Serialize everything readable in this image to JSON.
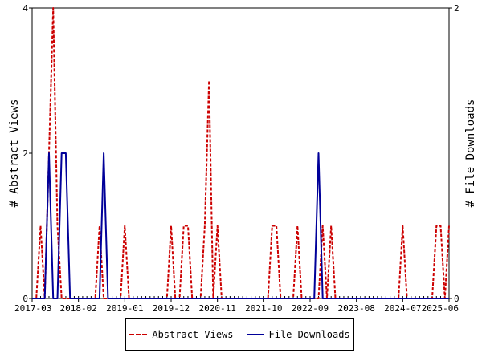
{
  "chart_data": {
    "type": "line",
    "x_tick_labels": [
      "2017-03",
      "2018-02",
      "2019-01",
      "2019-12",
      "2020-11",
      "2021-10",
      "2022-09",
      "2023-08",
      "2024-07",
      "2025-06"
    ],
    "x_range": [
      "2017-03",
      "2025-06"
    ],
    "y_left": {
      "label": "# Abstract Views",
      "range": [
        0,
        4
      ],
      "ticks": [
        "0",
        "2",
        "4"
      ]
    },
    "y_right": {
      "label": "# File Downloads",
      "range": [
        0,
        2
      ],
      "ticks": [
        "0",
        "2"
      ]
    },
    "series": [
      {
        "name": "Abstract Views",
        "axis": "left",
        "color": "#cc0000",
        "style": "dashed",
        "points": [
          [
            "2017-03",
            0
          ],
          [
            "2017-04",
            0
          ],
          [
            "2017-05",
            1
          ],
          [
            "2017-06",
            0
          ],
          [
            "2017-07",
            2
          ],
          [
            "2017-08",
            4
          ],
          [
            "2017-09",
            1
          ],
          [
            "2017-10",
            0
          ],
          [
            "2017-11",
            0
          ],
          [
            "2017-12",
            0
          ],
          [
            "2018-01",
            0
          ],
          [
            "2018-02",
            0
          ],
          [
            "2018-03",
            0
          ],
          [
            "2018-04",
            0
          ],
          [
            "2018-05",
            0
          ],
          [
            "2018-06",
            0
          ],
          [
            "2018-07",
            1
          ],
          [
            "2018-08",
            0
          ],
          [
            "2018-09",
            0
          ],
          [
            "2018-10",
            0
          ],
          [
            "2018-11",
            0
          ],
          [
            "2018-12",
            0
          ],
          [
            "2019-01",
            1
          ],
          [
            "2019-02",
            0
          ],
          [
            "2019-03",
            0
          ],
          [
            "2019-04",
            0
          ],
          [
            "2019-05",
            0
          ],
          [
            "2019-06",
            0
          ],
          [
            "2019-07",
            0
          ],
          [
            "2019-08",
            0
          ],
          [
            "2019-09",
            0
          ],
          [
            "2019-10",
            0
          ],
          [
            "2019-11",
            0
          ],
          [
            "2019-12",
            1
          ],
          [
            "2020-01",
            0
          ],
          [
            "2020-02",
            0
          ],
          [
            "2020-03",
            1
          ],
          [
            "2020-04",
            1
          ],
          [
            "2020-05",
            0
          ],
          [
            "2020-06",
            0
          ],
          [
            "2020-07",
            0
          ],
          [
            "2020-08",
            1
          ],
          [
            "2020-09",
            3
          ],
          [
            "2020-10",
            0
          ],
          [
            "2020-11",
            1
          ],
          [
            "2020-12",
            0
          ],
          [
            "2021-01",
            0
          ],
          [
            "2021-02",
            0
          ],
          [
            "2021-03",
            0
          ],
          [
            "2021-04",
            0
          ],
          [
            "2021-05",
            0
          ],
          [
            "2021-06",
            0
          ],
          [
            "2021-07",
            0
          ],
          [
            "2021-08",
            0
          ],
          [
            "2021-09",
            0
          ],
          [
            "2021-10",
            0
          ],
          [
            "2021-11",
            0
          ],
          [
            "2021-12",
            1
          ],
          [
            "2022-01",
            1
          ],
          [
            "2022-02",
            0
          ],
          [
            "2022-03",
            0
          ],
          [
            "2022-04",
            0
          ],
          [
            "2022-05",
            0
          ],
          [
            "2022-06",
            1
          ],
          [
            "2022-07",
            0
          ],
          [
            "2022-08",
            0
          ],
          [
            "2022-09",
            0
          ],
          [
            "2022-10",
            0
          ],
          [
            "2022-11",
            0
          ],
          [
            "2022-12",
            1
          ],
          [
            "2023-01",
            0
          ],
          [
            "2023-02",
            1
          ],
          [
            "2023-03",
            0
          ],
          [
            "2023-04",
            0
          ],
          [
            "2023-05",
            0
          ],
          [
            "2023-06",
            0
          ],
          [
            "2023-07",
            0
          ],
          [
            "2023-08",
            0
          ],
          [
            "2023-09",
            0
          ],
          [
            "2023-10",
            0
          ],
          [
            "2023-11",
            0
          ],
          [
            "2023-12",
            0
          ],
          [
            "2024-01",
            0
          ],
          [
            "2024-02",
            0
          ],
          [
            "2024-03",
            0
          ],
          [
            "2024-04",
            0
          ],
          [
            "2024-05",
            0
          ],
          [
            "2024-06",
            0
          ],
          [
            "2024-07",
            1
          ],
          [
            "2024-08",
            0
          ],
          [
            "2024-09",
            0
          ],
          [
            "2024-10",
            0
          ],
          [
            "2024-11",
            0
          ],
          [
            "2024-12",
            0
          ],
          [
            "2025-01",
            0
          ],
          [
            "2025-02",
            0
          ],
          [
            "2025-03",
            1
          ],
          [
            "2025-04",
            1
          ],
          [
            "2025-05",
            0
          ],
          [
            "2025-06",
            1
          ]
        ]
      },
      {
        "name": "File Downloads",
        "axis": "right",
        "color": "#000099",
        "style": "solid",
        "points": [
          [
            "2017-03",
            0
          ],
          [
            "2017-04",
            0
          ],
          [
            "2017-05",
            0
          ],
          [
            "2017-06",
            0
          ],
          [
            "2017-07",
            1
          ],
          [
            "2017-08",
            0
          ],
          [
            "2017-09",
            0
          ],
          [
            "2017-10",
            1
          ],
          [
            "2017-11",
            1
          ],
          [
            "2017-12",
            0
          ],
          [
            "2018-01",
            0
          ],
          [
            "2018-02",
            0
          ],
          [
            "2018-03",
            0
          ],
          [
            "2018-04",
            0
          ],
          [
            "2018-05",
            0
          ],
          [
            "2018-06",
            0
          ],
          [
            "2018-07",
            0
          ],
          [
            "2018-08",
            1
          ],
          [
            "2018-09",
            0
          ],
          [
            "2018-10",
            0
          ],
          [
            "2018-11",
            0
          ],
          [
            "2018-12",
            0
          ],
          [
            "2019-01",
            0
          ],
          [
            "2019-02",
            0
          ],
          [
            "2019-03",
            0
          ],
          [
            "2019-04",
            0
          ],
          [
            "2019-05",
            0
          ],
          [
            "2019-06",
            0
          ],
          [
            "2019-07",
            0
          ],
          [
            "2019-08",
            0
          ],
          [
            "2019-09",
            0
          ],
          [
            "2019-10",
            0
          ],
          [
            "2019-11",
            0
          ],
          [
            "2019-12",
            0
          ],
          [
            "2020-01",
            0
          ],
          [
            "2020-02",
            0
          ],
          [
            "2020-03",
            0
          ],
          [
            "2020-04",
            0
          ],
          [
            "2020-05",
            0
          ],
          [
            "2020-06",
            0
          ],
          [
            "2020-07",
            0
          ],
          [
            "2020-08",
            0
          ],
          [
            "2020-09",
            0
          ],
          [
            "2020-10",
            0
          ],
          [
            "2020-11",
            0
          ],
          [
            "2020-12",
            0
          ],
          [
            "2021-01",
            0
          ],
          [
            "2021-02",
            0
          ],
          [
            "2021-03",
            0
          ],
          [
            "2021-04",
            0
          ],
          [
            "2021-05",
            0
          ],
          [
            "2021-06",
            0
          ],
          [
            "2021-07",
            0
          ],
          [
            "2021-08",
            0
          ],
          [
            "2021-09",
            0
          ],
          [
            "2021-10",
            0
          ],
          [
            "2021-11",
            0
          ],
          [
            "2021-12",
            0
          ],
          [
            "2022-01",
            0
          ],
          [
            "2022-02",
            0
          ],
          [
            "2022-03",
            0
          ],
          [
            "2022-04",
            0
          ],
          [
            "2022-05",
            0
          ],
          [
            "2022-06",
            0
          ],
          [
            "2022-07",
            0
          ],
          [
            "2022-08",
            0
          ],
          [
            "2022-09",
            0
          ],
          [
            "2022-10",
            0
          ],
          [
            "2022-11",
            1
          ],
          [
            "2022-12",
            0
          ],
          [
            "2023-01",
            0
          ],
          [
            "2023-02",
            0
          ],
          [
            "2023-03",
            0
          ],
          [
            "2023-04",
            0
          ],
          [
            "2023-05",
            0
          ],
          [
            "2023-06",
            0
          ],
          [
            "2023-07",
            0
          ],
          [
            "2023-08",
            0
          ],
          [
            "2023-09",
            0
          ],
          [
            "2023-10",
            0
          ],
          [
            "2023-11",
            0
          ],
          [
            "2023-12",
            0
          ],
          [
            "2024-01",
            0
          ],
          [
            "2024-02",
            0
          ],
          [
            "2024-03",
            0
          ],
          [
            "2024-04",
            0
          ],
          [
            "2024-05",
            0
          ],
          [
            "2024-06",
            0
          ],
          [
            "2024-07",
            0
          ],
          [
            "2024-08",
            0
          ],
          [
            "2024-09",
            0
          ],
          [
            "2024-10",
            0
          ],
          [
            "2024-11",
            0
          ],
          [
            "2024-12",
            0
          ],
          [
            "2025-01",
            0
          ],
          [
            "2025-02",
            0
          ],
          [
            "2025-03",
            0
          ],
          [
            "2025-04",
            0
          ],
          [
            "2025-05",
            0
          ],
          [
            "2025-06",
            0
          ]
        ]
      }
    ],
    "grid": false,
    "legend_position": "bottom-center"
  }
}
